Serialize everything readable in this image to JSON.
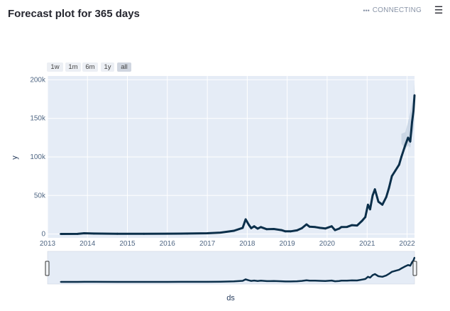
{
  "header": {
    "title": "Forecast plot for 365 days",
    "status_text": "CONNECTING",
    "status_icon": "dots-icon",
    "menu_icon": "hamburger-menu-icon"
  },
  "range_selector": {
    "buttons": [
      "1w",
      "1m",
      "6m",
      "1y",
      "all"
    ],
    "active": "all"
  },
  "colors": {
    "plot_bg": "#e5ecf6",
    "line": "#0b2f4a",
    "band": "#b9c9dc",
    "tick": "#506784"
  },
  "chart_data": {
    "type": "line",
    "title": "",
    "xlabel": "ds",
    "ylabel": "y",
    "x_ticks": [
      "2013",
      "2014",
      "2015",
      "2016",
      "2017",
      "2018",
      "2019",
      "2020",
      "2021",
      "2022"
    ],
    "y_ticks": [
      "0",
      "50k",
      "100k",
      "150k",
      "200k"
    ],
    "xlim": [
      "2013-01-01",
      "2022-03-10"
    ],
    "ylim": [
      -5000,
      205000
    ],
    "grid": true,
    "legend": "none",
    "rangeslider": true,
    "series": [
      {
        "x": [
          "2013-05-01",
          "2013-10-01",
          "2013-12-01",
          "2014-03-01",
          "2014-10-01",
          "2015-06-01",
          "2016-01-01",
          "2016-07-01",
          "2017-01-01",
          "2017-05-01",
          "2017-09-01",
          "2017-11-20",
          "2017-12-17",
          "2018-01-15",
          "2018-02-06",
          "2018-03-05",
          "2018-04-06",
          "2018-05-05",
          "2018-06-28",
          "2018-09-01",
          "2018-11-10",
          "2018-12-15",
          "2019-02-01",
          "2019-04-01",
          "2019-05-15",
          "2019-06-26",
          "2019-07-25",
          "2019-09-15",
          "2019-10-26",
          "2019-12-15",
          "2020-02-12",
          "2020-03-13",
          "2020-04-20",
          "2020-05-10",
          "2020-07-01",
          "2020-08-15",
          "2020-10-01",
          "2020-11-15",
          "2020-12-15",
          "2021-01-08",
          "2021-01-28",
          "2021-02-20",
          "2021-03-13",
          "2021-04-14",
          "2021-05-20",
          "2021-06-25",
          "2021-07-20",
          "2021-08-15",
          "2021-09-15",
          "2021-10-20",
          "2021-11-10",
          "2021-12-15",
          "2022-01-10",
          "2022-01-30",
          "2022-02-15",
          "2022-03-01",
          "2022-03-10"
        ],
        "y": [
          100,
          200,
          1000,
          600,
          350,
          250,
          420,
          650,
          950,
          1800,
          4200,
          8000,
          19000,
          12000,
          7500,
          10000,
          7000,
          9000,
          6200,
          6500,
          5000,
          3500,
          3500,
          4800,
          7500,
          12500,
          9500,
          9000,
          8000,
          7200,
          10000,
          5000,
          7000,
          9000,
          9200,
          11500,
          11000,
          17000,
          22000,
          38000,
          32000,
          50000,
          58000,
          42000,
          38000,
          48000,
          60000,
          75000,
          82000,
          90000,
          100000,
          115000,
          125000,
          120000,
          145000,
          160000,
          180000
        ]
      }
    ],
    "upper_band": [
      130000,
      132000,
      145000,
      158000,
      170000,
      178000,
      196000
    ],
    "lower_band": [
      117000,
      110000,
      115000,
      112000,
      128000,
      135000,
      150000
    ]
  }
}
